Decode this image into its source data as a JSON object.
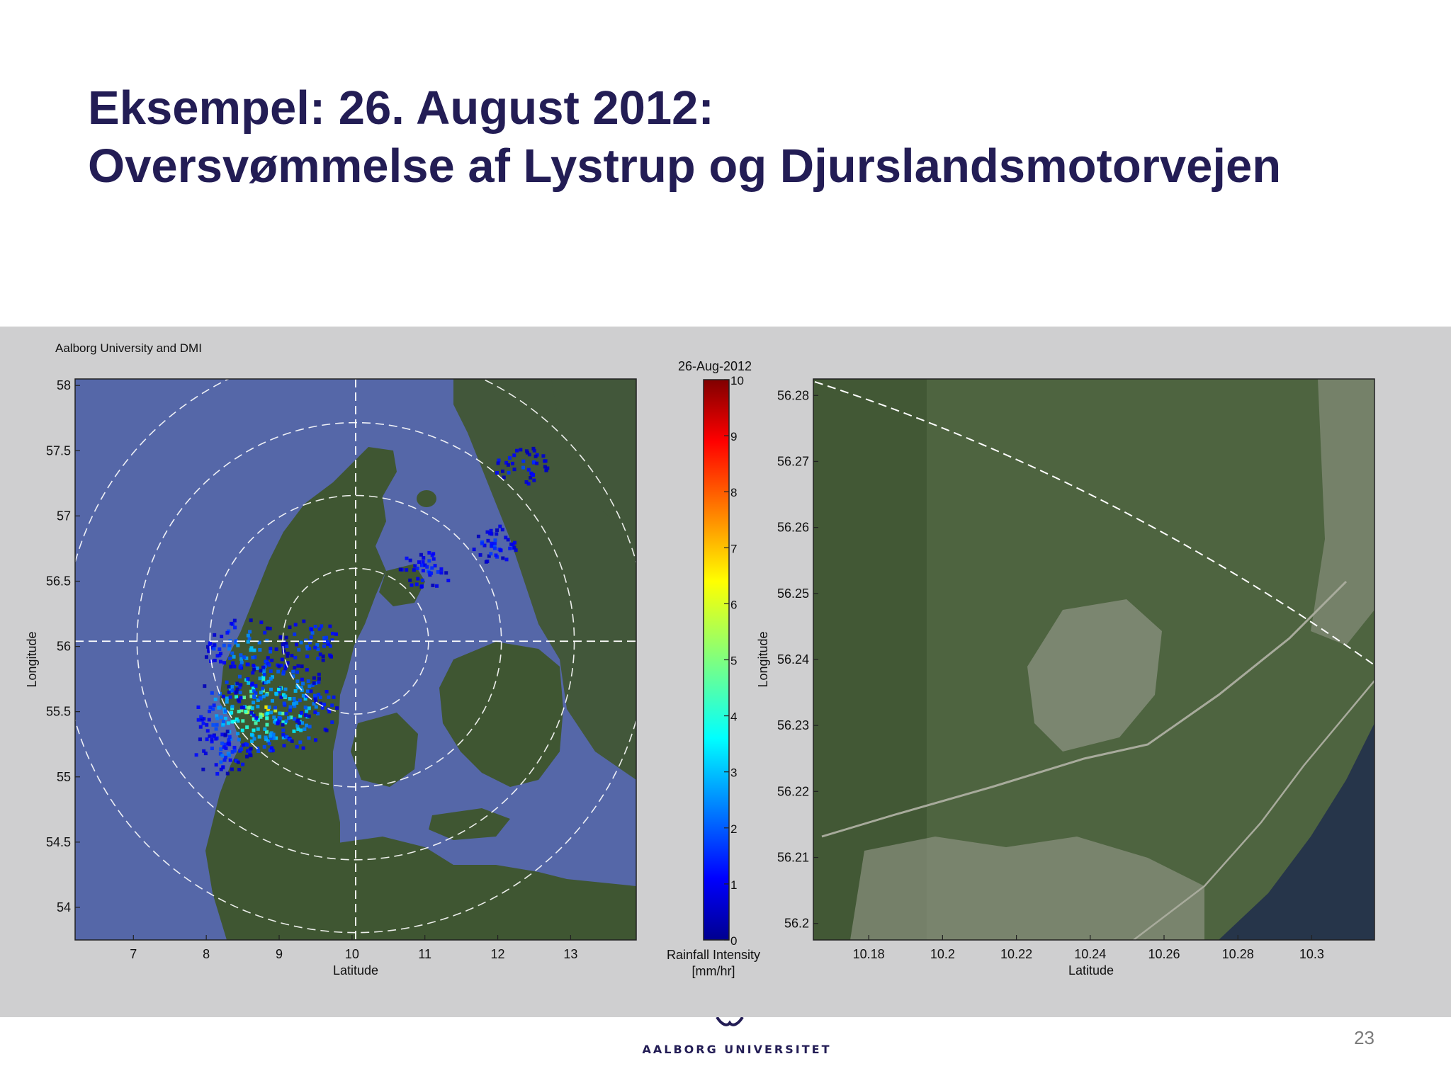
{
  "slide": {
    "title_line1": "Eksempel: 26. August 2012:",
    "title_line2": "Oversvømmelse af Lystrup og Djurslandsmotorvejen",
    "page_number": "23",
    "footer_logo_text": "AALBORG UNIVERSITET"
  },
  "colors": {
    "title": "#231d55",
    "panel_background": "#cfcfd0",
    "sea": "#5567a8",
    "land": "#3f5632",
    "aerial_land": "#4e6440"
  },
  "chart_data": [
    {
      "type": "heatmap",
      "title": "",
      "credit": "Aalborg University and DMI",
      "xlabel": "Latitude",
      "ylabel": "Longitude",
      "xlim": [
        6.2,
        13.9
      ],
      "ylim": [
        53.75,
        58.05
      ],
      "xticks": [
        7,
        8,
        9,
        10,
        11,
        12,
        13
      ],
      "xtick_labels": [
        "7",
        "8",
        "9",
        "10",
        "11",
        "12",
        "13"
      ],
      "yticks": [
        54,
        54.5,
        55,
        55.5,
        56,
        56.5,
        57,
        57.5,
        58
      ],
      "ytick_labels": [
        "54",
        "54.5",
        "55",
        "55.5",
        "56",
        "56.5",
        "57",
        "57.5",
        "58"
      ],
      "radar_center": [
        10.05,
        56.04
      ],
      "range_rings_deg": [
        1.0,
        1.0,
        1.0,
        1.0
      ],
      "background": "satellite image of Denmark",
      "rain_cells": [
        {
          "lon": 8.8,
          "lat": 55.55,
          "intensity": 6
        },
        {
          "lon": 8.6,
          "lat": 55.45,
          "intensity": 4
        },
        {
          "lon": 9.0,
          "lat": 55.65,
          "intensity": 3
        },
        {
          "lon": 8.2,
          "lat": 55.2,
          "intensity": 1.5
        },
        {
          "lon": 8.5,
          "lat": 56.0,
          "intensity": 2.5
        },
        {
          "lon": 9.4,
          "lat": 56.05,
          "intensity": 1.5
        },
        {
          "lon": 11.0,
          "lat": 56.6,
          "intensity": 1
        },
        {
          "lon": 11.9,
          "lat": 56.8,
          "intensity": 1
        },
        {
          "lon": 12.3,
          "lat": 57.4,
          "intensity": 1
        }
      ]
    },
    {
      "type": "colorbar",
      "title": "26-Aug-2012",
      "label_line1": "Rainfall Intensity",
      "label_line2": "[mm/hr]",
      "range": [
        0,
        10
      ],
      "ticks": [
        0,
        1,
        2,
        3,
        4,
        5,
        6,
        7,
        8,
        9,
        10
      ],
      "tick_labels": [
        "0",
        "1",
        "2",
        "3",
        "4",
        "5",
        "6",
        "7",
        "8",
        "9",
        "10"
      ],
      "colormap": "jet"
    },
    {
      "type": "heatmap",
      "title": "",
      "xlabel": "Latitude",
      "ylabel": "Longitude",
      "xlim": [
        10.165,
        10.317
      ],
      "ylim": [
        56.1975,
        56.2825
      ],
      "xticks": [
        10.18,
        10.2,
        10.22,
        10.24,
        10.26,
        10.28,
        10.3
      ],
      "xtick_labels": [
        "10.18",
        "10.2",
        "10.22",
        "10.24",
        "10.26",
        "10.28",
        "10.3"
      ],
      "yticks": [
        56.2,
        56.21,
        56.22,
        56.23,
        56.24,
        56.25,
        56.26,
        56.27,
        56.28
      ],
      "ytick_labels": [
        "56.2",
        "56.21",
        "56.22",
        "56.23",
        "56.24",
        "56.25",
        "56.26",
        "56.27",
        "56.28"
      ],
      "background": "aerial image of Lystrup area",
      "range_arc": true
    }
  ]
}
